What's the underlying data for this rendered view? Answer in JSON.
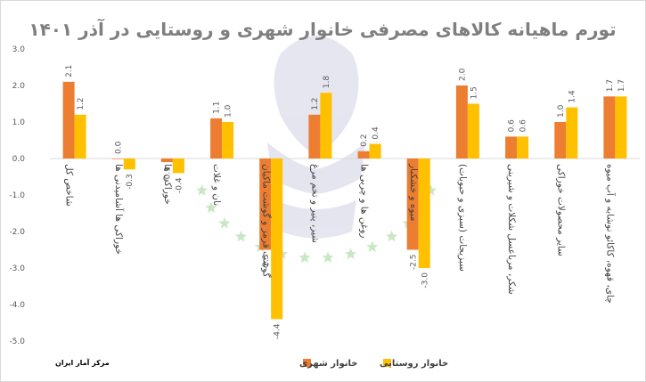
{
  "chart_data": {
    "type": "bar",
    "title": "تورم ماهیانه کالاهای مصرفی خانوار شهری و روستایی در آذر ۱۴۰۱",
    "source": "مرکز آمار ایران",
    "categories": [
      "شاخص کل",
      "خوراکی ها آشامیدنی ها",
      "خوراکی ها",
      "نان و غلات",
      "گوشت قرمز و گوشت ماکیان",
      "شیر، پنیر و تخم مرغ",
      "روغن ها و چربی ها",
      "میوه و خشکبار",
      "سبزیجات (سبزی و حبوبات)",
      "شکر، مرباعسل شکلات و شیرینی",
      "سایر محصولات خوراکی",
      "چای، قهوه، کاکائو نوشابه و آب میوه"
    ],
    "series": [
      {
        "name": "خانوار شهری",
        "color": "#ed7d31",
        "values": [
          2.1,
          0.0,
          -0.1,
          1.1,
          -2.5,
          1.2,
          0.2,
          -2.5,
          2.0,
          0.6,
          1.0,
          1.7
        ]
      },
      {
        "name": "خانوار روستایی",
        "color": "#ffc000",
        "values": [
          1.2,
          -0.3,
          -0.4,
          1.0,
          -4.4,
          1.8,
          0.4,
          -3.0,
          1.5,
          0.6,
          1.4,
          1.7
        ]
      }
    ],
    "y_ticks": [
      "3.0",
      "2.0",
      "1.0",
      "0.0",
      "-1.0",
      "-2.0",
      "-3.0",
      "-4.0",
      "-5.0"
    ],
    "ylim": [
      -5,
      3
    ],
    "legend_position": "bottom",
    "grid": false
  }
}
